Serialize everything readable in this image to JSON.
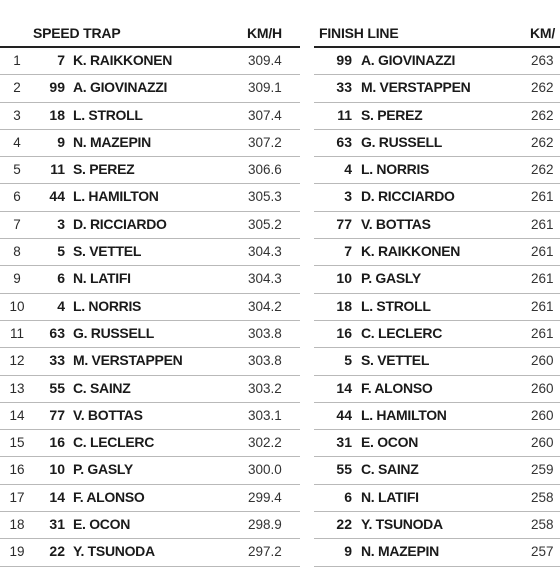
{
  "speed_trap": {
    "title": "SPEED TRAP",
    "unit": "KM/H",
    "rows": [
      {
        "pos": "1",
        "num": "7",
        "name": "K. RAIKKONEN",
        "speed": "309.4"
      },
      {
        "pos": "2",
        "num": "99",
        "name": "A. GIOVINAZZI",
        "speed": "309.1"
      },
      {
        "pos": "3",
        "num": "18",
        "name": "L. STROLL",
        "speed": "307.4"
      },
      {
        "pos": "4",
        "num": "9",
        "name": "N. MAZEPIN",
        "speed": "307.2"
      },
      {
        "pos": "5",
        "num": "11",
        "name": "S. PEREZ",
        "speed": "306.6"
      },
      {
        "pos": "6",
        "num": "44",
        "name": "L. HAMILTON",
        "speed": "305.3"
      },
      {
        "pos": "7",
        "num": "3",
        "name": "D. RICCIARDO",
        "speed": "305.2"
      },
      {
        "pos": "8",
        "num": "5",
        "name": "S. VETTEL",
        "speed": "304.3"
      },
      {
        "pos": "9",
        "num": "6",
        "name": "N. LATIFI",
        "speed": "304.3"
      },
      {
        "pos": "10",
        "num": "4",
        "name": "L. NORRIS",
        "speed": "304.2"
      },
      {
        "pos": "11",
        "num": "63",
        "name": "G. RUSSELL",
        "speed": "303.8"
      },
      {
        "pos": "12",
        "num": "33",
        "name": "M. VERSTAPPEN",
        "speed": "303.8"
      },
      {
        "pos": "13",
        "num": "55",
        "name": "C. SAINZ",
        "speed": "303.2"
      },
      {
        "pos": "14",
        "num": "77",
        "name": "V. BOTTAS",
        "speed": "303.1"
      },
      {
        "pos": "15",
        "num": "16",
        "name": "C. LECLERC",
        "speed": "302.2"
      },
      {
        "pos": "16",
        "num": "10",
        "name": "P. GASLY",
        "speed": "300.0"
      },
      {
        "pos": "17",
        "num": "14",
        "name": "F. ALONSO",
        "speed": "299.4"
      },
      {
        "pos": "18",
        "num": "31",
        "name": "E. OCON",
        "speed": "298.9"
      },
      {
        "pos": "19",
        "num": "22",
        "name": "Y. TSUNODA",
        "speed": "297.2"
      }
    ]
  },
  "finish_line": {
    "title": "FINISH LINE",
    "unit": "KM/",
    "rows": [
      {
        "num": "99",
        "name": "A. GIOVINAZZI",
        "speed": "263"
      },
      {
        "num": "33",
        "name": "M. VERSTAPPEN",
        "speed": "262"
      },
      {
        "num": "11",
        "name": "S. PEREZ",
        "speed": "262"
      },
      {
        "num": "63",
        "name": "G. RUSSELL",
        "speed": "262"
      },
      {
        "num": "4",
        "name": "L. NORRIS",
        "speed": "262"
      },
      {
        "num": "3",
        "name": "D. RICCIARDO",
        "speed": "261"
      },
      {
        "num": "77",
        "name": "V. BOTTAS",
        "speed": "261"
      },
      {
        "num": "7",
        "name": "K. RAIKKONEN",
        "speed": "261"
      },
      {
        "num": "10",
        "name": "P. GASLY",
        "speed": "261"
      },
      {
        "num": "18",
        "name": "L. STROLL",
        "speed": "261"
      },
      {
        "num": "16",
        "name": "C. LECLERC",
        "speed": "261"
      },
      {
        "num": "5",
        "name": "S. VETTEL",
        "speed": "260"
      },
      {
        "num": "14",
        "name": "F. ALONSO",
        "speed": "260"
      },
      {
        "num": "44",
        "name": "L. HAMILTON",
        "speed": "260"
      },
      {
        "num": "31",
        "name": "E. OCON",
        "speed": "260"
      },
      {
        "num": "55",
        "name": "C. SAINZ",
        "speed": "259"
      },
      {
        "num": "6",
        "name": "N. LATIFI",
        "speed": "258"
      },
      {
        "num": "22",
        "name": "Y. TSUNODA",
        "speed": "258"
      },
      {
        "num": "9",
        "name": "N. MAZEPIN",
        "speed": "257"
      }
    ]
  }
}
